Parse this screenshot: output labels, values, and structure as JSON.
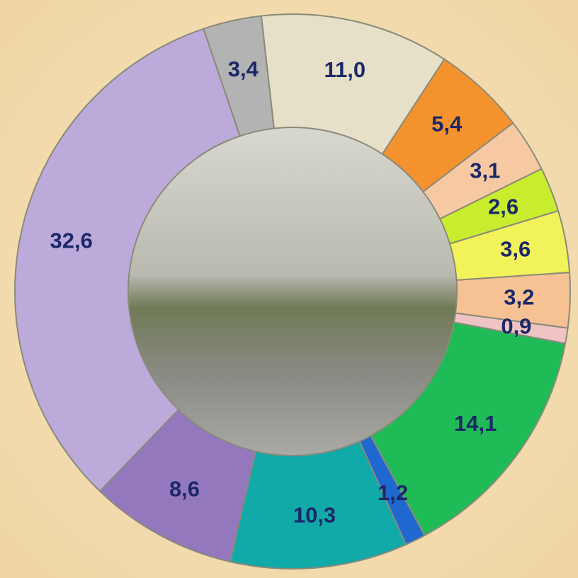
{
  "chart_data": {
    "type": "pie",
    "values": [
      3.4,
      11.0,
      5.4,
      3.1,
      2.6,
      3.6,
      3.2,
      0.9,
      14.1,
      1.2,
      10.3,
      8.6,
      32.6
    ],
    "value_labels": [
      "3,4",
      "11,0",
      "5,4",
      "3,1",
      "2,6",
      "3,6",
      "3,2",
      "0,9",
      "14,1",
      "1,2",
      "10,3",
      "8,6",
      "32,6"
    ],
    "colors": [
      "#b3b3b3",
      "#e6e0c8",
      "#f4932e",
      "#f7c9a2",
      "#c8ec2e",
      "#f2f25a",
      "#f6c193",
      "#f0c4c4",
      "#1fbb57",
      "#1f68cf",
      "#12a9a9",
      "#9478bd",
      "#bcaada"
    ]
  }
}
